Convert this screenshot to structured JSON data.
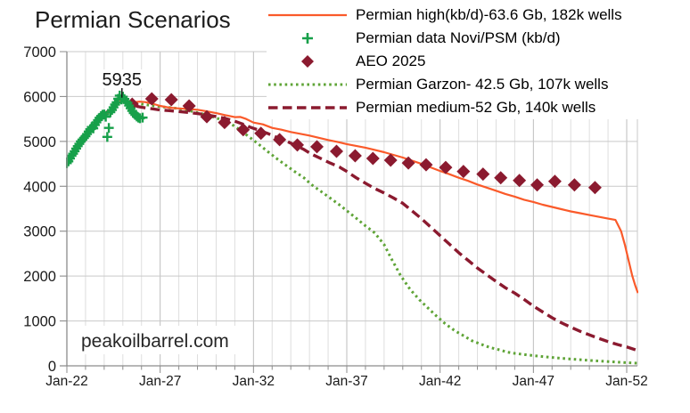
{
  "title": "Permian Scenarios",
  "watermark": "peakoilbarrel.com",
  "colors": {
    "high_line": "#fa5a2a",
    "data_marker": "#17a04a",
    "aeo_marker": "#8b1a2f",
    "garzon_line": "#5fa437",
    "medium_line": "#8b1a2f",
    "grid_minor": "#dedede",
    "grid_major": "#bdbdbd",
    "grid_horizontal": "#c9c9c9",
    "axis": "#8c8c8c",
    "text": "#1a1a1a"
  },
  "chart_data": {
    "type": "line",
    "title": "Permian Scenarios",
    "xlabel": "",
    "ylabel": "",
    "x_axis": {
      "unit": "years since Jan-2022",
      "range_years": [
        0,
        30.62
      ],
      "tick_years": [
        0,
        5,
        10,
        15,
        20,
        25,
        30
      ],
      "tick_labels": [
        "Jan-22",
        "Jan-27",
        "Jan-32",
        "Jan-37",
        "Jan-42",
        "Jan-47",
        "Jan-52"
      ],
      "minor_tick_step_years": 1
    },
    "y_axis": {
      "range": [
        0,
        7000
      ],
      "ticks": [
        0,
        1000,
        2000,
        3000,
        4000,
        5000,
        6000,
        7000
      ],
      "tick_labels": [
        "0",
        "1000",
        "2000",
        "3000",
        "4000",
        "5000",
        "6000",
        "7000"
      ]
    },
    "grid": true,
    "legend_position": "top-right",
    "annotation": {
      "text": "5935",
      "t": 2.95,
      "value": 5935
    },
    "series": [
      {
        "name": "Permian high(kb/d)-63.6 Gb, 182k wells",
        "kind": "line",
        "style": "solid",
        "color": "#fa5a2a",
        "width": 2.2,
        "points": [
          [
            0,
            4500
          ],
          [
            0.3,
            4690
          ],
          [
            0.6,
            4860
          ],
          [
            0.9,
            5030
          ],
          [
            1.2,
            5200
          ],
          [
            1.5,
            5380
          ],
          [
            1.8,
            5510
          ],
          [
            2.1,
            5600
          ],
          [
            2.4,
            5700
          ],
          [
            2.7,
            5810
          ],
          [
            2.95,
            5935
          ],
          [
            3.2,
            5905
          ],
          [
            3.5,
            5870
          ],
          [
            3.9,
            5885
          ],
          [
            4.2,
            5875
          ],
          [
            4.6,
            5840
          ],
          [
            5,
            5790
          ],
          [
            5.5,
            5750
          ],
          [
            6,
            5735
          ],
          [
            6.5,
            5720
          ],
          [
            7,
            5705
          ],
          [
            7.5,
            5670
          ],
          [
            8,
            5630
          ],
          [
            8.5,
            5585
          ],
          [
            9,
            5540
          ],
          [
            9.3,
            5545
          ],
          [
            9.6,
            5500
          ],
          [
            10,
            5420
          ],
          [
            10.5,
            5380
          ],
          [
            11,
            5300
          ],
          [
            11.5,
            5260
          ],
          [
            12,
            5210
          ],
          [
            12.5,
            5170
          ],
          [
            13,
            5130
          ],
          [
            13.5,
            5080
          ],
          [
            14,
            5030
          ],
          [
            14.5,
            4990
          ],
          [
            15,
            4940
          ],
          [
            15.5,
            4900
          ],
          [
            16,
            4860
          ],
          [
            16.5,
            4810
          ],
          [
            17,
            4760
          ],
          [
            17.5,
            4700
          ],
          [
            18,
            4640
          ],
          [
            18.5,
            4570
          ],
          [
            19,
            4500
          ],
          [
            19.5,
            4420
          ],
          [
            20,
            4340
          ],
          [
            20.5,
            4270
          ],
          [
            21,
            4190
          ],
          [
            21.5,
            4120
          ],
          [
            22,
            4040
          ],
          [
            22.5,
            3970
          ],
          [
            23,
            3900
          ],
          [
            23.5,
            3830
          ],
          [
            24,
            3770
          ],
          [
            24.5,
            3700
          ],
          [
            25,
            3650
          ],
          [
            25.5,
            3590
          ],
          [
            26,
            3540
          ],
          [
            26.5,
            3490
          ],
          [
            27,
            3440
          ],
          [
            27.5,
            3400
          ],
          [
            28,
            3360
          ],
          [
            28.5,
            3320
          ],
          [
            29,
            3280
          ],
          [
            29.4,
            3250
          ],
          [
            29.7,
            3000
          ],
          [
            29.9,
            2700
          ],
          [
            30.1,
            2350
          ],
          [
            30.3,
            2000
          ],
          [
            30.45,
            1800
          ],
          [
            30.6,
            1620
          ]
        ]
      },
      {
        "name": "Permian data Novi/PSM (kb/d)",
        "kind": "scatter",
        "marker": "plus",
        "color": "#17a04a",
        "size": 11,
        "points": [
          [
            0,
            4515
          ],
          [
            0.083,
            4555
          ],
          [
            0.167,
            4620
          ],
          [
            0.25,
            4680
          ],
          [
            0.333,
            4725
          ],
          [
            0.417,
            4780
          ],
          [
            0.5,
            4840
          ],
          [
            0.583,
            4895
          ],
          [
            0.667,
            4945
          ],
          [
            0.75,
            5000
          ],
          [
            0.833,
            5040
          ],
          [
            0.917,
            5075
          ],
          [
            1,
            5115
          ],
          [
            1.083,
            5165
          ],
          [
            1.167,
            5220
          ],
          [
            1.25,
            5270
          ],
          [
            1.333,
            5320
          ],
          [
            1.417,
            5290
          ],
          [
            1.5,
            5365
          ],
          [
            1.583,
            5425
          ],
          [
            1.667,
            5475
          ],
          [
            1.75,
            5525
          ],
          [
            1.833,
            5565
          ],
          [
            1.917,
            5595
          ],
          [
            2,
            5600
          ],
          [
            2.083,
            5550
          ],
          [
            2.167,
            5100
          ],
          [
            2.25,
            5300
          ],
          [
            2.333,
            5650
          ],
          [
            2.417,
            5700
          ],
          [
            2.5,
            5760
          ],
          [
            2.583,
            5820
          ],
          [
            2.667,
            5870
          ],
          [
            2.75,
            5950
          ],
          [
            2.833,
            6020
          ],
          [
            2.917,
            5935
          ],
          [
            3,
            5995
          ],
          [
            3.083,
            5945
          ],
          [
            3.167,
            5890
          ],
          [
            3.25,
            5860
          ],
          [
            3.333,
            5800
          ],
          [
            3.417,
            5740
          ],
          [
            3.5,
            5680
          ],
          [
            3.583,
            5630
          ],
          [
            3.667,
            5590
          ],
          [
            3.75,
            5555
          ],
          [
            3.833,
            5530
          ],
          [
            3.917,
            5515
          ],
          [
            4.06,
            5530
          ]
        ]
      },
      {
        "name": "AEO 2025",
        "kind": "scatter",
        "marker": "diamond",
        "color": "#8b1a2f",
        "size": 7.5,
        "points": [
          [
            3.5,
            5830
          ],
          [
            4.55,
            5950
          ],
          [
            5.6,
            5930
          ],
          [
            6.55,
            5790
          ],
          [
            7.5,
            5550
          ],
          [
            8.45,
            5420
          ],
          [
            9.45,
            5260
          ],
          [
            10.4,
            5180
          ],
          [
            11.4,
            5040
          ],
          [
            12.35,
            4920
          ],
          [
            13.4,
            4880
          ],
          [
            14.45,
            4780
          ],
          [
            15.45,
            4680
          ],
          [
            16.4,
            4620
          ],
          [
            17.35,
            4580
          ],
          [
            18.3,
            4520
          ],
          [
            19.25,
            4480
          ],
          [
            20.3,
            4420
          ],
          [
            21.25,
            4330
          ],
          [
            22.3,
            4270
          ],
          [
            23.25,
            4190
          ],
          [
            24.25,
            4130
          ],
          [
            25.2,
            4030
          ],
          [
            26.15,
            4110
          ],
          [
            27.2,
            4030
          ],
          [
            28.3,
            3970
          ]
        ]
      },
      {
        "name": "Permian Garzon- 42.5 Gb, 107k wells",
        "kind": "line",
        "style": "dotted",
        "color": "#5fa437",
        "width": 3,
        "points": [
          [
            0,
            4500
          ],
          [
            0.5,
            4810
          ],
          [
            1,
            5110
          ],
          [
            1.5,
            5390
          ],
          [
            2,
            5600
          ],
          [
            2.5,
            5780
          ],
          [
            2.95,
            5930
          ],
          [
            3.4,
            5880
          ],
          [
            4,
            5830
          ],
          [
            4.5,
            5800
          ],
          [
            5,
            5775
          ],
          [
            5.5,
            5755
          ],
          [
            6,
            5730
          ],
          [
            6.5,
            5690
          ],
          [
            7,
            5640
          ],
          [
            7.5,
            5590
          ],
          [
            8,
            5520
          ],
          [
            8.4,
            5470
          ],
          [
            8.8,
            5390
          ],
          [
            9.3,
            5250
          ],
          [
            9.8,
            5090
          ],
          [
            10.3,
            4930
          ],
          [
            10.75,
            4780
          ],
          [
            11.2,
            4630
          ],
          [
            11.7,
            4480
          ],
          [
            12.2,
            4330
          ],
          [
            12.7,
            4190
          ],
          [
            13.1,
            4040
          ],
          [
            13.6,
            3890
          ],
          [
            14.1,
            3740
          ],
          [
            14.6,
            3590
          ],
          [
            15.05,
            3440
          ],
          [
            15.5,
            3290
          ],
          [
            16,
            3120
          ],
          [
            16.5,
            2960
          ],
          [
            17,
            2700
          ],
          [
            17.4,
            2380
          ],
          [
            17.9,
            2000
          ],
          [
            18.4,
            1700
          ],
          [
            18.9,
            1470
          ],
          [
            19.4,
            1270
          ],
          [
            19.8,
            1110
          ],
          [
            20.3,
            930
          ],
          [
            20.8,
            780
          ],
          [
            21.3,
            660
          ],
          [
            21.7,
            560
          ],
          [
            22.2,
            480
          ],
          [
            22.7,
            405
          ],
          [
            23.2,
            355
          ],
          [
            23.6,
            305
          ],
          [
            24,
            278
          ],
          [
            24.5,
            252
          ],
          [
            25,
            228
          ],
          [
            25.5,
            207
          ],
          [
            26,
            186
          ],
          [
            26.5,
            168
          ],
          [
            27,
            151
          ],
          [
            27.5,
            136
          ],
          [
            28,
            121
          ],
          [
            28.5,
            108
          ],
          [
            29,
            96
          ],
          [
            29.5,
            84
          ],
          [
            30,
            72
          ],
          [
            30.6,
            58
          ]
        ]
      },
      {
        "name": "Permian medium-52 Gb, 140k wells",
        "kind": "line",
        "style": "dashed",
        "color": "#8b1a2f",
        "width": 3.4,
        "points": [
          [
            0,
            4500
          ],
          [
            0.5,
            4810
          ],
          [
            1,
            5110
          ],
          [
            1.5,
            5390
          ],
          [
            2,
            5600
          ],
          [
            2.5,
            5780
          ],
          [
            2.95,
            5900
          ],
          [
            3.4,
            5810
          ],
          [
            4,
            5760
          ],
          [
            4.5,
            5730
          ],
          [
            5,
            5700
          ],
          [
            5.5,
            5685
          ],
          [
            6,
            5665
          ],
          [
            6.5,
            5645
          ],
          [
            7,
            5620
          ],
          [
            7.5,
            5590
          ],
          [
            8,
            5555
          ],
          [
            8.5,
            5510
          ],
          [
            9,
            5450
          ],
          [
            9.4,
            5390
          ],
          [
            9.8,
            5320
          ],
          [
            10.3,
            5250
          ],
          [
            10.75,
            5180
          ],
          [
            11.2,
            5100
          ],
          [
            11.7,
            5020
          ],
          [
            12.2,
            4920
          ],
          [
            12.7,
            4820
          ],
          [
            13.1,
            4720
          ],
          [
            13.6,
            4620
          ],
          [
            14.1,
            4520
          ],
          [
            14.6,
            4430
          ],
          [
            15,
            4330
          ],
          [
            15.5,
            4190
          ],
          [
            16,
            4070
          ],
          [
            16.5,
            3950
          ],
          [
            17,
            3850
          ],
          [
            17.5,
            3740
          ],
          [
            18,
            3620
          ],
          [
            18.5,
            3450
          ],
          [
            19,
            3280
          ],
          [
            19.5,
            3090
          ],
          [
            20,
            2900
          ],
          [
            20.5,
            2710
          ],
          [
            21,
            2520
          ],
          [
            21.5,
            2350
          ],
          [
            22,
            2180
          ],
          [
            22.5,
            2030
          ],
          [
            23,
            1880
          ],
          [
            23.5,
            1740
          ],
          [
            24,
            1620
          ],
          [
            24.5,
            1480
          ],
          [
            25,
            1330
          ],
          [
            25.5,
            1200
          ],
          [
            26,
            1070
          ],
          [
            26.5,
            960
          ],
          [
            27,
            860
          ],
          [
            27.5,
            770
          ],
          [
            28,
            690
          ],
          [
            28.5,
            610
          ],
          [
            29,
            540
          ],
          [
            29.5,
            475
          ],
          [
            30,
            420
          ],
          [
            30.6,
            340
          ]
        ]
      }
    ]
  }
}
